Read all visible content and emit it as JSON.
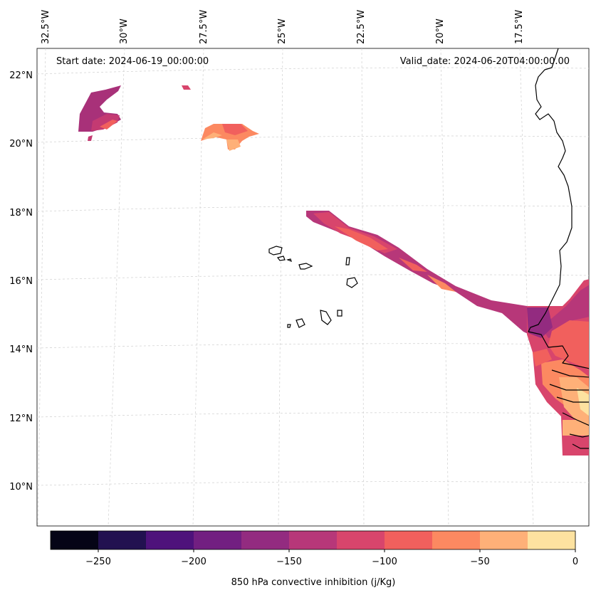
{
  "map": {
    "start_date_label": "Start date: 2024-06-19_00:00:00",
    "valid_date_label": "Valid_date: 2024-06-20T04:00:00.00",
    "longitude_labels": [
      "32.5°W",
      "30°W",
      "27.5°W",
      "25°W",
      "22.5°W",
      "20°W",
      "17.5°W"
    ],
    "latitude_labels": [
      "22°N",
      "20°N",
      "18°N",
      "16°N",
      "14°N",
      "12°N",
      "10°N"
    ]
  },
  "colorbar": {
    "label": "850 hPa convective inhibition (j/Kg)",
    "tick_labels": [
      "−250",
      "−200",
      "−150",
      "−100",
      "−50",
      "0"
    ],
    "levels": [
      -275,
      -250,
      -225,
      -200,
      -175,
      -150,
      -125,
      -100,
      -75,
      -50,
      -25,
      0
    ],
    "colors": [
      "#050416",
      "#221150",
      "#4e127b",
      "#721f81",
      "#932b80",
      "#b73779",
      "#d8456c",
      "#f1605d",
      "#fc8961",
      "#feb078",
      "#fde2a0"
    ]
  }
}
